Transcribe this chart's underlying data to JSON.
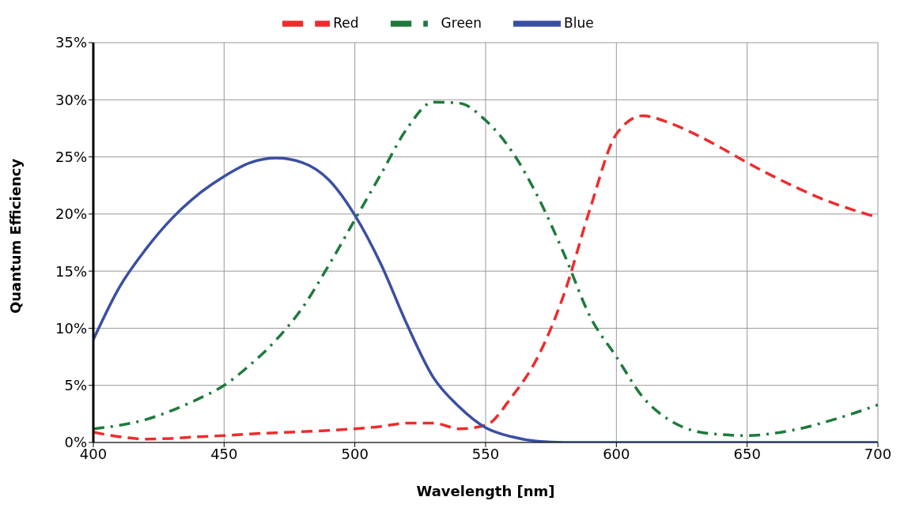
{
  "chart_data": {
    "type": "line",
    "xlabel": "Wavelength [nm]",
    "ylabel": "Quantum Efficiency",
    "x": [
      400,
      410,
      420,
      430,
      440,
      450,
      460,
      470,
      480,
      490,
      500,
      510,
      520,
      530,
      540,
      550,
      560,
      570,
      580,
      590,
      600,
      610,
      620,
      630,
      640,
      650,
      660,
      670,
      680,
      690,
      700
    ],
    "series": [
      {
        "name": "Red",
        "color": "#ee2c2c",
        "line_style": "dashed",
        "values": [
          0.9,
          0.5,
          0.3,
          0.35,
          0.5,
          0.6,
          0.75,
          0.85,
          0.95,
          1.05,
          1.2,
          1.4,
          1.7,
          1.7,
          1.2,
          1.5,
          4,
          7.5,
          13,
          20.5,
          27,
          28.6,
          28,
          27,
          25.8,
          24.5,
          23.3,
          22.2,
          21.2,
          20.4,
          19.7
        ]
      },
      {
        "name": "Green",
        "color": "#1e7a3c",
        "line_style": "dashdot",
        "values": [
          1.2,
          1.5,
          2.0,
          2.8,
          3.8,
          5.0,
          6.8,
          9.0,
          11.8,
          15.5,
          19.5,
          23.5,
          27.5,
          29.8,
          29.7,
          28.2,
          25.5,
          21.5,
          16.5,
          11,
          7.5,
          4.0,
          2.0,
          1.0,
          0.7,
          0.6,
          0.8,
          1.2,
          1.8,
          2.5,
          3.3
        ]
      },
      {
        "name": "Blue",
        "color": "#3a4fa3",
        "line_style": "solid",
        "values": [
          9.0,
          13.6,
          16.9,
          19.6,
          21.7,
          23.3,
          24.5,
          24.9,
          24.5,
          23.0,
          19.9,
          15.6,
          10.3,
          5.7,
          3.1,
          1.3,
          0.5,
          0.1,
          0,
          0,
          0,
          0,
          0,
          0,
          0,
          0,
          0,
          0,
          0,
          0,
          0
        ]
      }
    ],
    "xlim": [
      400,
      700
    ],
    "xticks": [
      400,
      450,
      500,
      550,
      600,
      650,
      700
    ],
    "ylim": [
      0,
      35
    ],
    "yticks": [
      {
        "value": 0,
        "label": "0%"
      },
      {
        "value": 5,
        "label": "5%"
      },
      {
        "value": 10,
        "label": "10%"
      },
      {
        "value": 15,
        "label": "15%"
      },
      {
        "value": 20,
        "label": "20%"
      },
      {
        "value": 25,
        "label": "25%"
      },
      {
        "value": 30,
        "label": "30%"
      },
      {
        "value": 35,
        "label": "35%"
      }
    ],
    "grid": true,
    "legend": "top",
    "marker": "none"
  }
}
